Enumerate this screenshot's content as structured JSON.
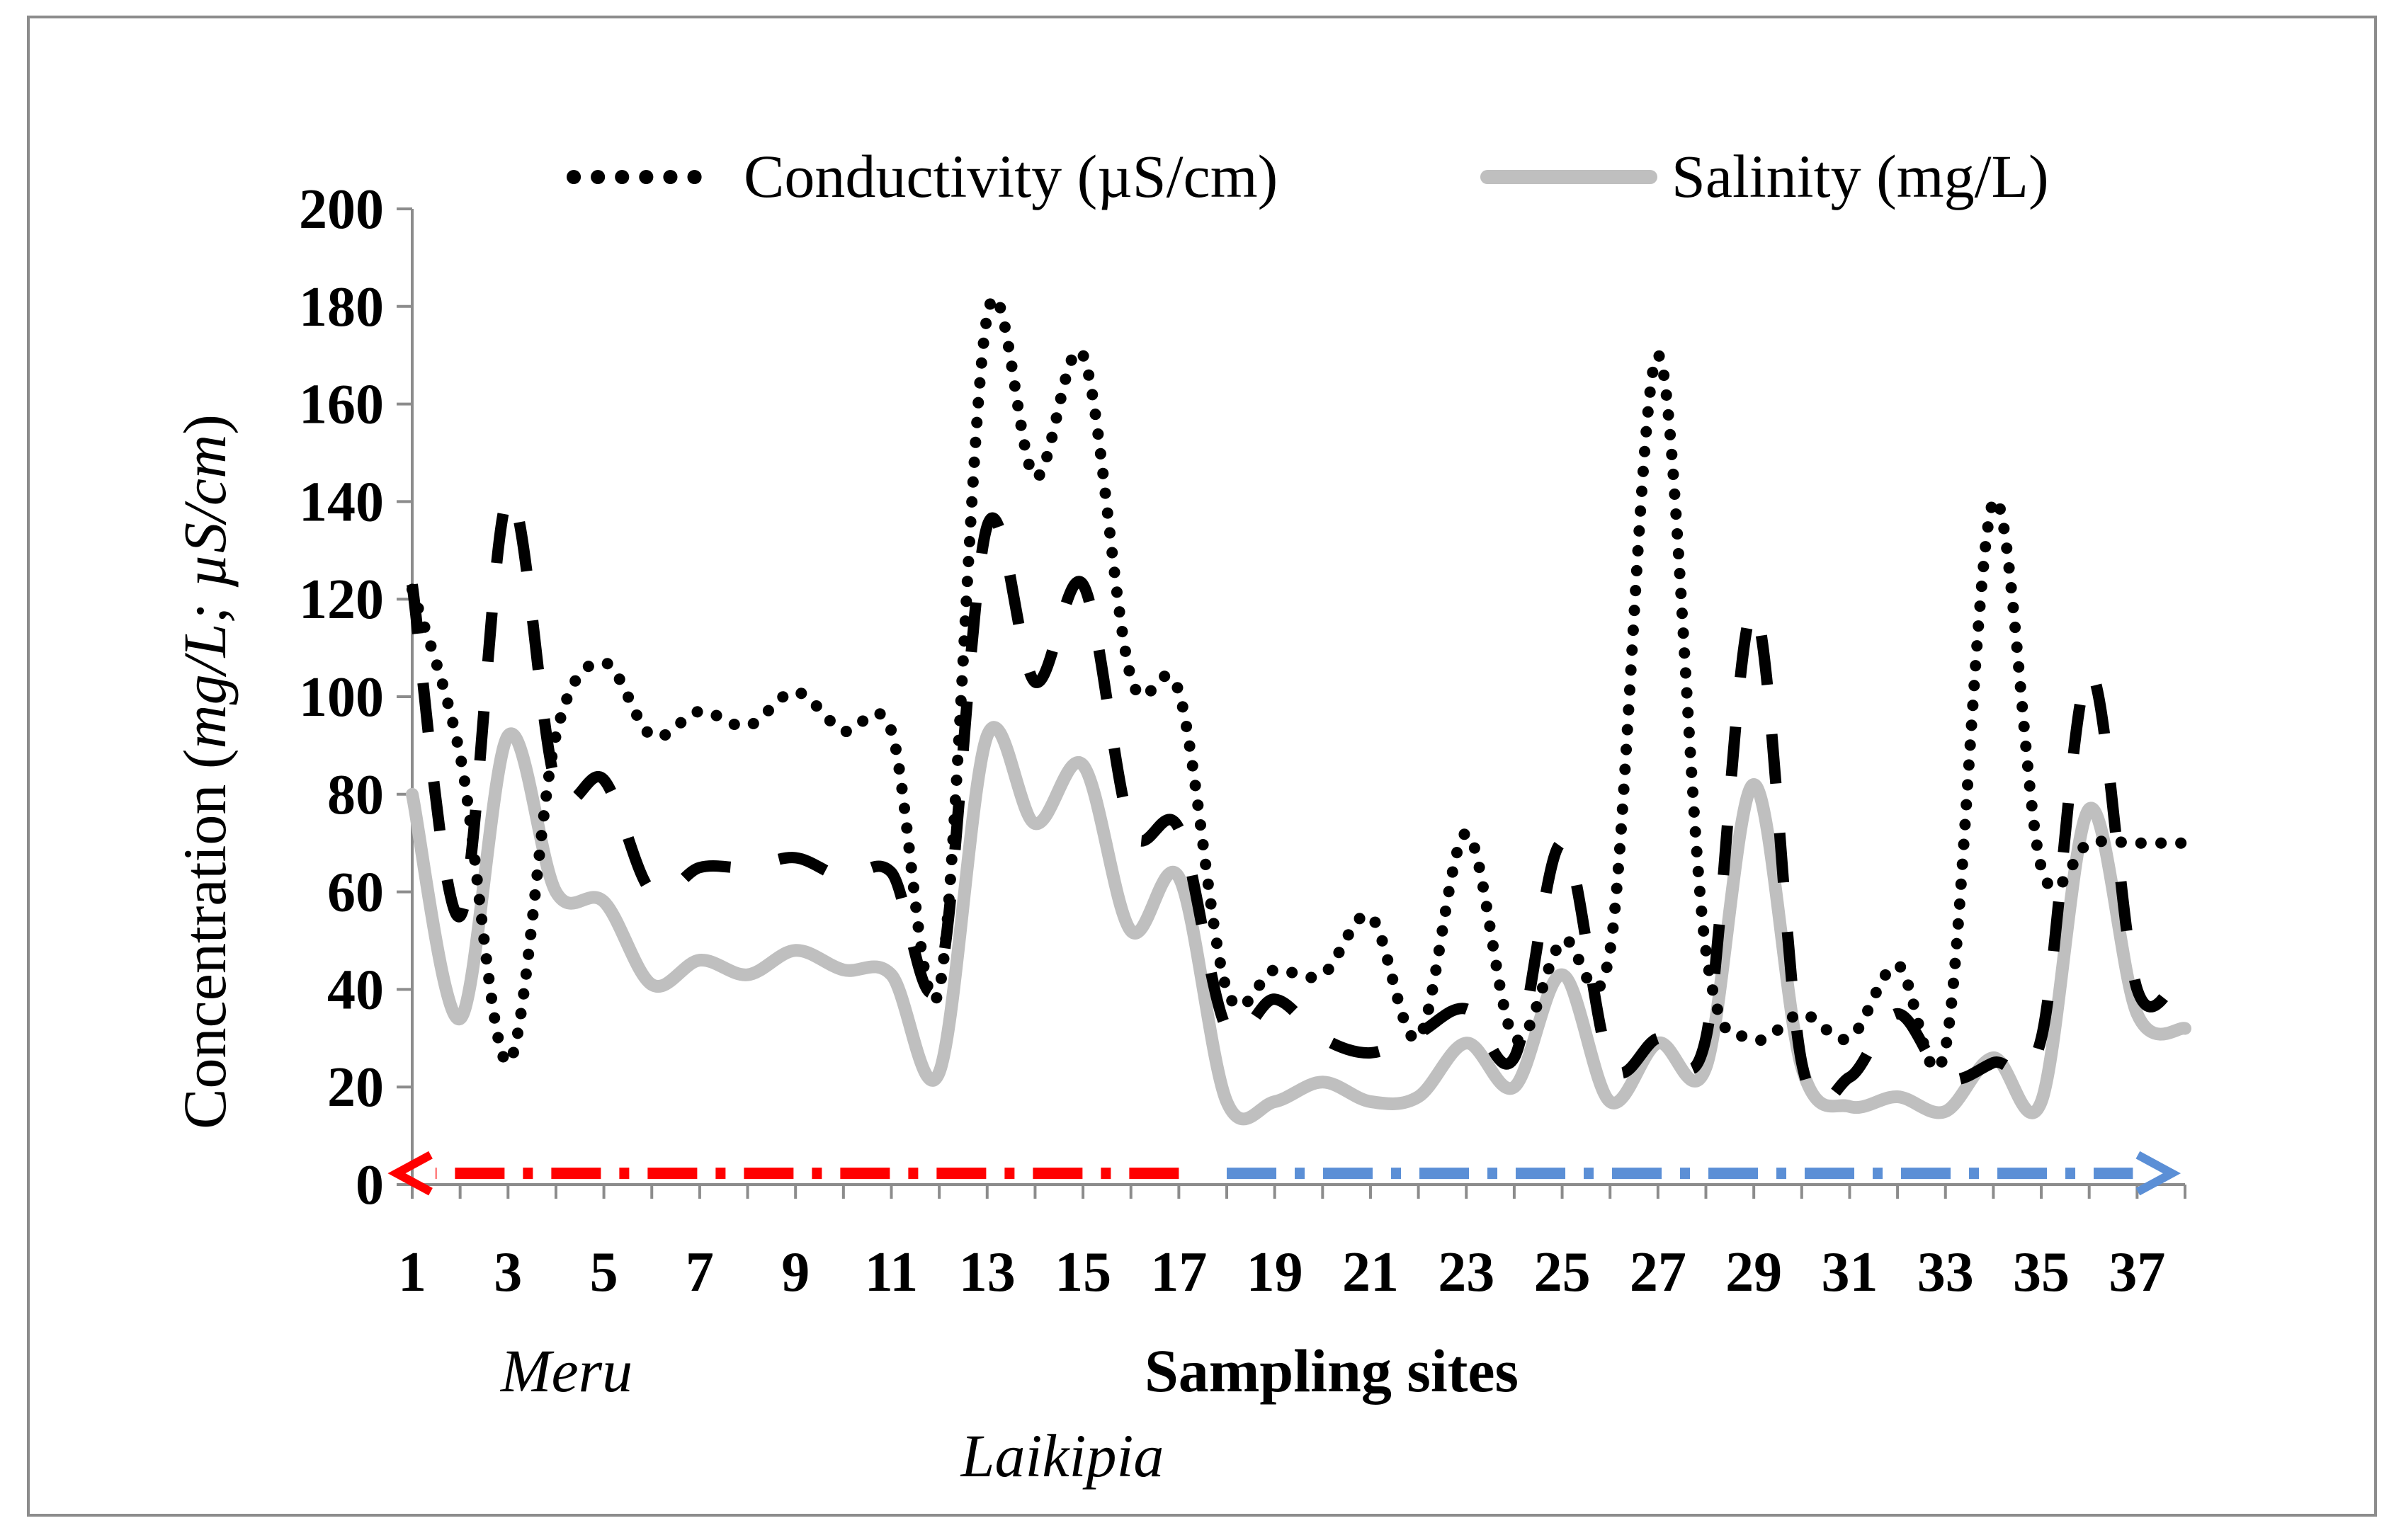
{
  "chart_data": {
    "type": "line",
    "title": "",
    "xlabel": "Sampling sites",
    "ylabel_prefix": "Concentration (",
    "ylabel_units": "mg/L; µS/cm",
    "ylabel_suffix": ")",
    "ylim": [
      0,
      200
    ],
    "yticks": [
      0,
      20,
      40,
      60,
      80,
      100,
      120,
      140,
      160,
      180,
      200
    ],
    "xlim": [
      1,
      38
    ],
    "xtick_labels": [
      "1",
      "3",
      "5",
      "7",
      "9",
      "11",
      "13",
      "15",
      "17",
      "19",
      "21",
      "23",
      "25",
      "27",
      "29",
      "31",
      "33",
      "35",
      "37"
    ],
    "x": [
      1,
      2,
      3,
      4,
      5,
      6,
      7,
      8,
      9,
      10,
      11,
      12,
      13,
      14,
      15,
      16,
      17,
      18,
      19,
      20,
      21,
      22,
      23,
      24,
      25,
      26,
      27,
      28,
      29,
      30,
      31,
      32,
      33,
      34,
      35,
      36,
      37,
      38
    ],
    "series": [
      {
        "name": "Conductivity (µS/cm)",
        "style": "dotted",
        "color": "#000000",
        "in_legend": true,
        "values": [
          122,
          88,
          25,
          92,
          107,
          92,
          97,
          94,
          101,
          93,
          93,
          40,
          178,
          145,
          170,
          104,
          101,
          40,
          44,
          43,
          55,
          30,
          72,
          30,
          50,
          48,
          170,
          48,
          30,
          35,
          30,
          45,
          28,
          140,
          65,
          70,
          70,
          70
        ]
      },
      {
        "name": "Salinity (mg/L)",
        "style": "solid",
        "color": "#bfbfbf",
        "in_legend": true,
        "values": [
          80,
          34,
          92,
          60,
          58,
          41,
          46,
          43,
          48,
          44,
          43,
          23,
          92,
          74,
          86,
          52,
          63,
          17,
          17,
          21,
          17,
          18,
          29,
          20,
          43,
          17,
          29,
          24,
          82,
          24,
          16,
          18,
          15,
          26,
          17,
          77,
          35,
          32
        ]
      },
      {
        "name": "",
        "style": "dashed",
        "color": "#000000",
        "in_legend": false,
        "values": [
          123,
          55,
          141,
          82,
          83,
          60,
          65,
          65,
          67,
          63,
          64,
          42,
          135,
          103,
          123,
          73,
          73,
          32,
          38,
          30,
          27,
          31,
          36,
          26,
          70,
          25,
          30,
          30,
          118,
          25,
          22,
          35,
          22,
          25,
          30,
          105,
          40,
          45
        ]
      }
    ],
    "annotations": {
      "region_labels": [
        "Meru",
        "Laikipia"
      ],
      "arrows": [
        {
          "direction": "left",
          "color": "#ff0000",
          "style": "dash-dot",
          "from_site": 17,
          "to_site": 1
        },
        {
          "direction": "right",
          "color": "#5b8fd6",
          "style": "dash-dot",
          "from_site": 18,
          "to_site": 37.4
        }
      ]
    }
  }
}
